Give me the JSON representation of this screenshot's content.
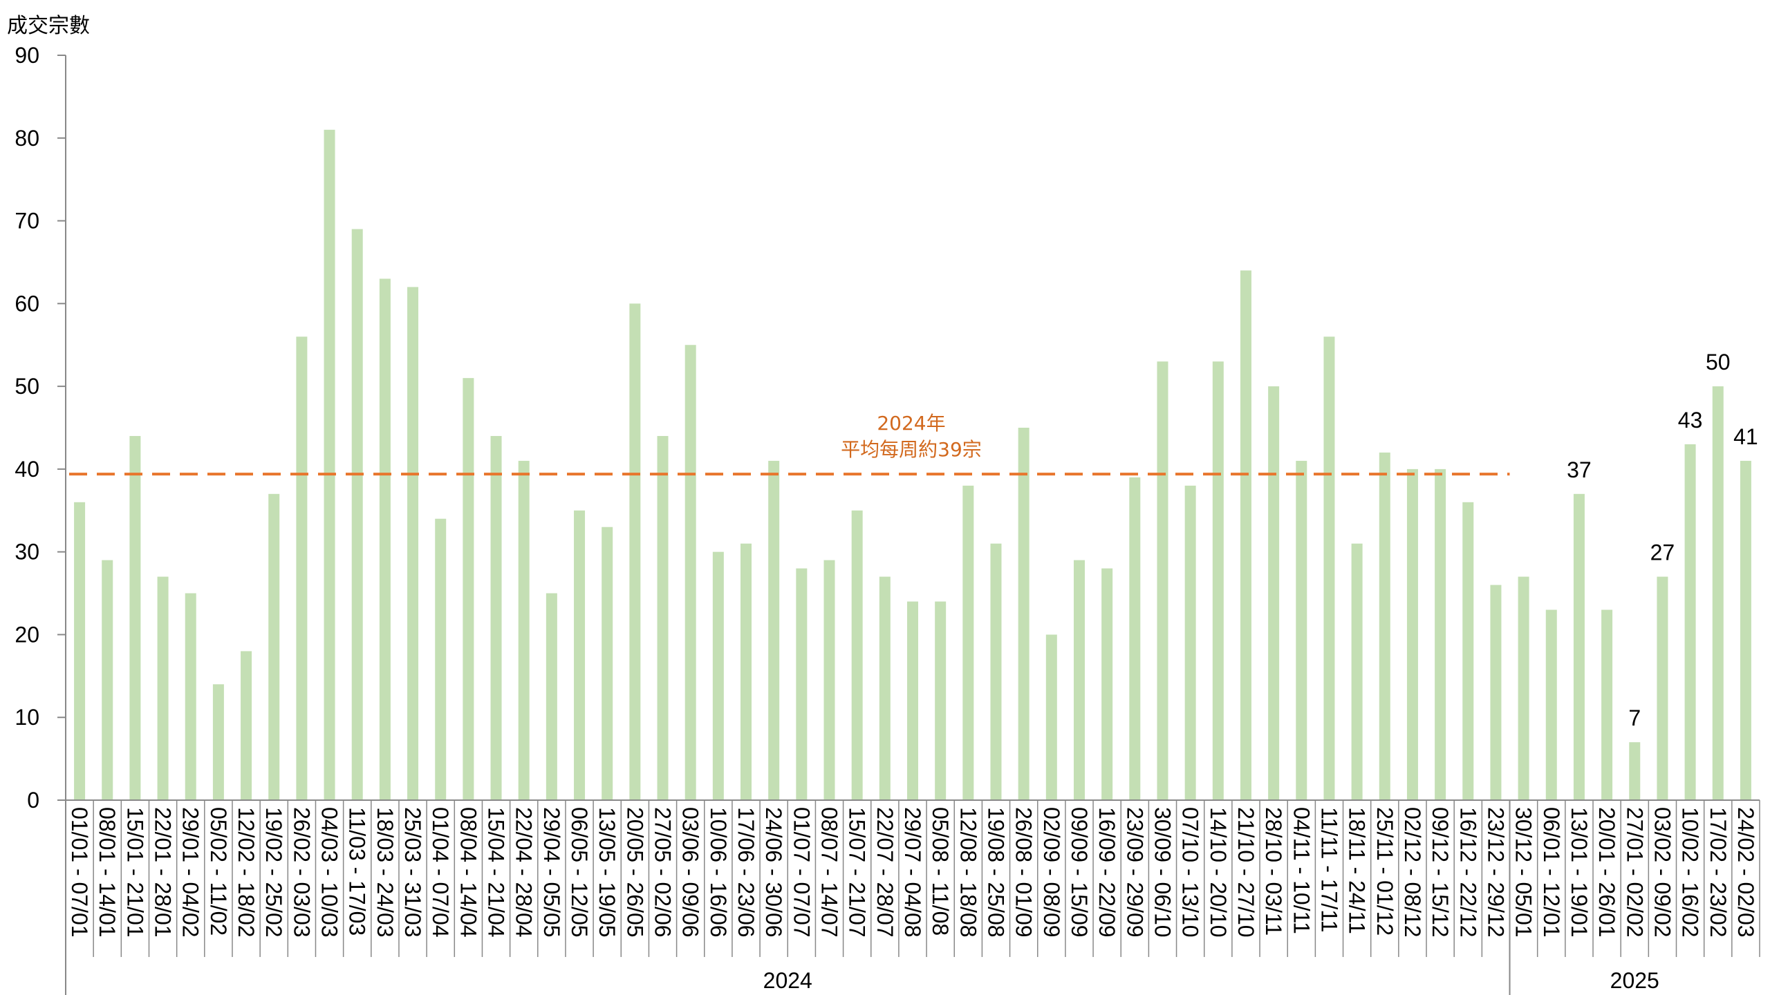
{
  "chart_data": {
    "type": "bar",
    "ylabel": "成交宗數",
    "ylim": [
      0,
      90
    ],
    "yticks": [
      0,
      10,
      20,
      30,
      40,
      50,
      60,
      70,
      80,
      90
    ],
    "categories": [
      "01/01 - 07/01",
      "08/01 - 14/01",
      "15/01 - 21/01",
      "22/01 - 28/01",
      "29/01 - 04/02",
      "05/02 - 11/02",
      "12/02 - 18/02",
      "19/02 - 25/02",
      "26/02 - 03/03",
      "04/03 - 10/03",
      "11/03 - 17/03",
      "18/03 - 24/03",
      "25/03 - 31/03",
      "01/04 - 07/04",
      "08/04 - 14/04",
      "15/04 - 21/04",
      "22/04 - 28/04",
      "29/04 - 05/05",
      "06/05 - 12/05",
      "13/05 - 19/05",
      "20/05 - 26/05",
      "27/05 - 02/06",
      "03/06 - 09/06",
      "10/06 - 16/06",
      "17/06 - 23/06",
      "24/06 - 30/06",
      "01/07 - 07/07",
      "08/07 - 14/07",
      "15/07 - 21/07",
      "22/07 - 28/07",
      "29/07 - 04/08",
      "05/08 - 11/08",
      "12/08 - 18/08",
      "19/08 - 25/08",
      "26/08 - 01/09",
      "02/09 - 08/09",
      "09/09 - 15/09",
      "16/09 - 22/09",
      "23/09 - 29/09",
      "30/09 - 06/10",
      "07/10 - 13/10",
      "14/10 - 20/10",
      "21/10 - 27/10",
      "28/10 - 03/11",
      "04/11 - 10/11",
      "11/11 - 17/11",
      "18/11 - 24/11",
      "25/11 - 01/12",
      "02/12 - 08/12",
      "09/12 - 15/12",
      "16/12 - 22/12",
      "23/12 - 29/12",
      "30/12 - 05/01",
      "06/01 - 12/01",
      "13/01 - 19/01",
      "20/01 - 26/01",
      "27/01 - 02/02",
      "03/02 - 09/02",
      "10/02 - 16/02",
      "17/02 - 23/02",
      "24/02 - 02/03"
    ],
    "values": [
      36,
      29,
      44,
      27,
      25,
      14,
      18,
      37,
      56,
      81,
      69,
      63,
      62,
      34,
      51,
      44,
      41,
      25,
      35,
      33,
      60,
      44,
      55,
      30,
      31,
      41,
      28,
      29,
      35,
      27,
      24,
      24,
      38,
      31,
      45,
      20,
      29,
      28,
      39,
      53,
      38,
      53,
      64,
      50,
      41,
      56,
      31,
      42,
      40,
      40,
      36,
      26,
      27,
      23,
      37,
      23,
      7,
      27,
      43,
      50,
      41
    ],
    "data_labels": [
      {
        "index": 54,
        "text": "37"
      },
      {
        "index": 56,
        "text": "7"
      },
      {
        "index": 57,
        "text": "27"
      },
      {
        "index": 58,
        "text": "43"
      },
      {
        "index": 59,
        "text": "50"
      },
      {
        "index": 60,
        "text": "41"
      }
    ],
    "year_groups": [
      {
        "label": "2024",
        "start": 0,
        "end": 51
      },
      {
        "label": "2025",
        "start": 52,
        "end": 60
      }
    ],
    "average_line": {
      "value": 39.4,
      "label_line1": "2024年",
      "label_line2": "平均每周約39宗",
      "end_index": 51
    },
    "colors": {
      "bar": "#c4dfb4",
      "average_line": "#e8762d",
      "average_text": "#d2691e",
      "axis": "#888888"
    },
    "grid": false
  }
}
